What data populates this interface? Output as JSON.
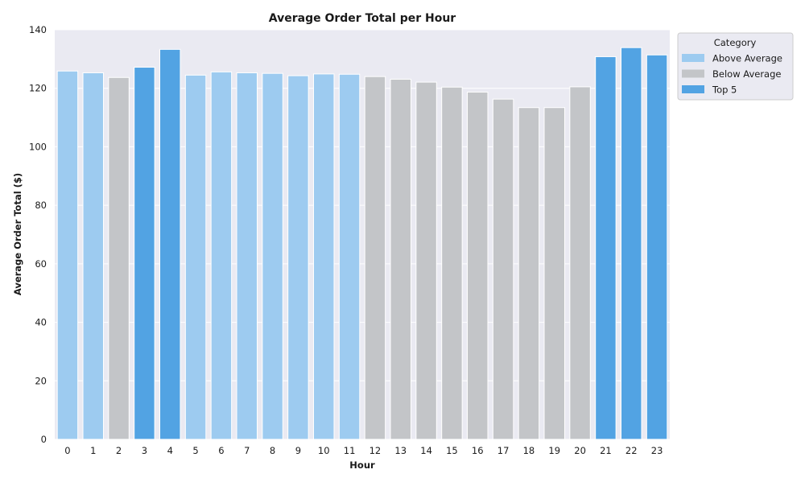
{
  "chart_data": {
    "type": "bar",
    "title": "Average Order Total per Hour",
    "xlabel": "Hour",
    "ylabel": "Average Order Total ($)",
    "ylim": [
      0,
      140
    ],
    "yticks": [
      0,
      20,
      40,
      60,
      80,
      100,
      120,
      140
    ],
    "grid": true,
    "legend_placement": "outside-top-right",
    "categories": [
      "0",
      "1",
      "2",
      "3",
      "4",
      "5",
      "6",
      "7",
      "8",
      "9",
      "10",
      "11",
      "12",
      "13",
      "14",
      "15",
      "16",
      "17",
      "18",
      "19",
      "20",
      "21",
      "22",
      "23"
    ],
    "values": [
      125.9,
      125.3,
      123.7,
      127.2,
      133.3,
      124.5,
      125.6,
      125.3,
      125.1,
      124.3,
      124.9,
      124.8,
      124.0,
      123.1,
      122.1,
      120.4,
      118.7,
      116.3,
      113.4,
      113.4,
      120.5,
      130.8,
      133.9,
      131.4
    ],
    "bar_category": [
      "Above Average",
      "Above Average",
      "Below Average",
      "Top 5",
      "Top 5",
      "Above Average",
      "Above Average",
      "Above Average",
      "Above Average",
      "Above Average",
      "Above Average",
      "Above Average",
      "Below Average",
      "Below Average",
      "Below Average",
      "Below Average",
      "Below Average",
      "Below Average",
      "Below Average",
      "Below Average",
      "Below Average",
      "Top 5",
      "Top 5",
      "Top 5"
    ],
    "legend": {
      "title": "Category",
      "entries": [
        {
          "name": "Above Average",
          "color": "#9dcbf0"
        },
        {
          "name": "Below Average",
          "color": "#c3c5c8"
        },
        {
          "name": "Top 5",
          "color": "#52a3e3"
        }
      ]
    },
    "colors": {
      "plot_background": "#eaeaf2",
      "gridline": "#ffffff"
    }
  }
}
